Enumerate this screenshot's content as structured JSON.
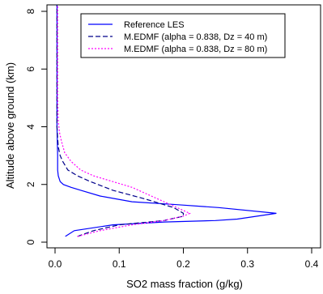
{
  "chart_data": {
    "type": "line",
    "title": "",
    "xlabel": "SO2 mass fraction (g/kg)",
    "ylabel": "Altitude above ground (km)",
    "xlim": [
      0,
      0.4
    ],
    "ylim": [
      0,
      8
    ],
    "x_ticks": [
      0.0,
      0.1,
      0.2,
      0.3,
      0.4
    ],
    "x_tick_labels": [
      "0.0",
      "0.1",
      "0.2",
      "0.3",
      "0.4"
    ],
    "y_ticks": [
      0,
      2,
      4,
      6,
      8
    ],
    "y_tick_labels": [
      "0",
      "2",
      "4",
      "6",
      "8"
    ],
    "grid": false,
    "legend_position": "top-right",
    "series": [
      {
        "name": "Reference LES",
        "color": "#0000ff",
        "line_style": "solid",
        "x": [
          0.016,
          0.03,
          0.09,
          0.17,
          0.25,
          0.284,
          0.345,
          0.255,
          0.19,
          0.12,
          0.07,
          0.04,
          0.025,
          0.013,
          0.008,
          0.005,
          0.004,
          0.004,
          0.003,
          0.003,
          0.003,
          0.003
        ],
        "y": [
          0.2,
          0.4,
          0.6,
          0.7,
          0.75,
          0.8,
          1.0,
          1.2,
          1.3,
          1.4,
          1.6,
          1.8,
          1.9,
          2.0,
          2.1,
          2.3,
          2.5,
          3.0,
          4.0,
          5.0,
          6.5,
          8.5
        ]
      },
      {
        "name": "M.EDMF (alpha = 0.838, Dz = 40 m)",
        "color": "#00008b",
        "line_style": "dashed",
        "x": [
          0.035,
          0.06,
          0.1,
          0.17,
          0.2,
          0.2,
          0.185,
          0.14,
          0.09,
          0.055,
          0.035,
          0.02,
          0.012,
          0.008,
          0.005,
          0.004,
          0.003,
          0.003,
          0.003,
          0.003
        ],
        "y": [
          0.2,
          0.4,
          0.6,
          0.75,
          0.9,
          1.0,
          1.2,
          1.5,
          1.8,
          2.1,
          2.3,
          2.5,
          2.8,
          3.0,
          3.3,
          3.6,
          4.0,
          5.0,
          6.5,
          8.5
        ]
      },
      {
        "name": "M.EDMF (alpha = 0.838, Dz = 80 m)",
        "color": "#ff00ff",
        "line_style": "dotted",
        "x": [
          0.035,
          0.07,
          0.12,
          0.17,
          0.2,
          0.21,
          0.19,
          0.16,
          0.12,
          0.09,
          0.06,
          0.04,
          0.025,
          0.015,
          0.01,
          0.007,
          0.005,
          0.004,
          0.004,
          0.004
        ],
        "y": [
          0.2,
          0.4,
          0.6,
          0.75,
          0.9,
          1.0,
          1.2,
          1.5,
          1.9,
          2.1,
          2.3,
          2.5,
          2.8,
          3.1,
          3.5,
          3.8,
          4.2,
          5.0,
          6.5,
          8.5
        ]
      }
    ]
  }
}
